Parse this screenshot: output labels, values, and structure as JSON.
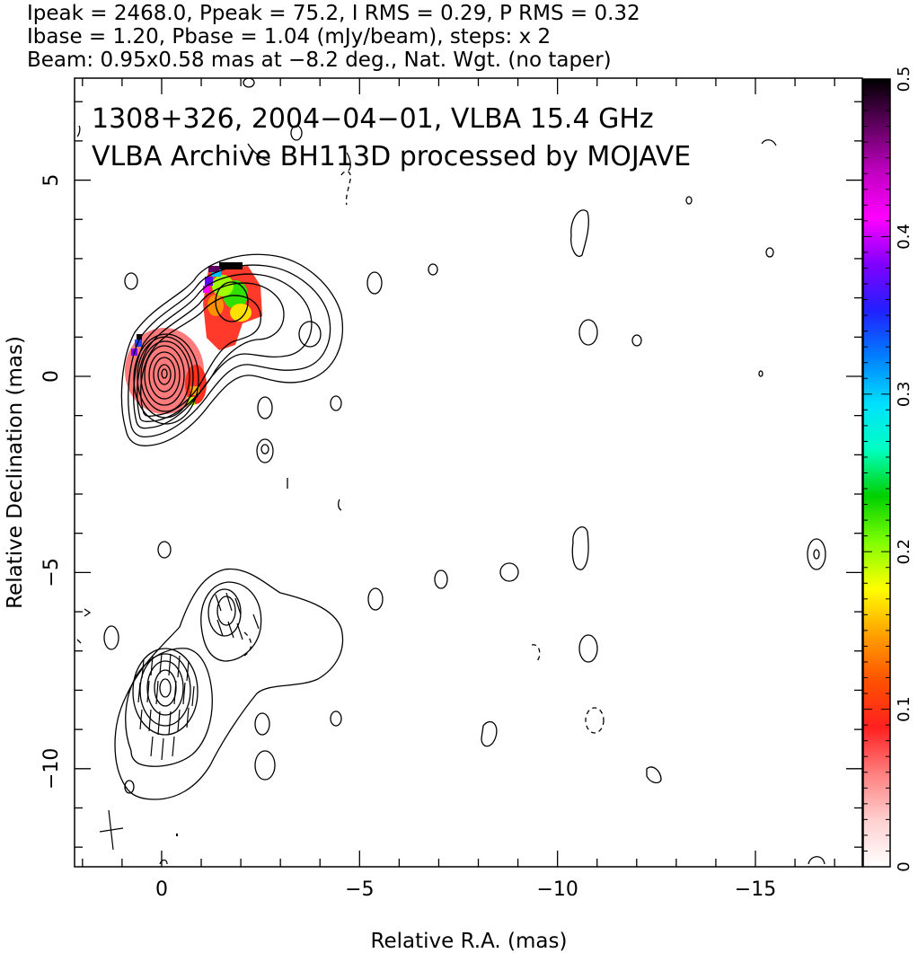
{
  "header": {
    "line1": "Ipeak = 2468.0, Ppeak = 75.2, I RMS = 0.29, P RMS = 0.32",
    "line2": "Ibase = 1.20, Pbase = 1.04 (mJy/beam), steps: x 2",
    "line3": "Beam: 0.95x0.58 mas at −8.2 deg., Nat. Wgt. (no taper)"
  },
  "chart_data": {
    "type": "heatmap",
    "title_line1": "1308+326, 2004−04−01, VLBA 15.4 GHz",
    "title_line2": "VLBA Archive BH113D processed by MOJAVE",
    "xlabel": "Relative R.A. (mas)",
    "ylabel": "Relative Declination (mas)",
    "xlim": [
      2.2,
      -17.7
    ],
    "ylim": [
      -12.5,
      7.6
    ],
    "x_ticks": [
      0,
      -5,
      -10,
      -15
    ],
    "x_tick_labels": [
      "0",
      "−5",
      "−10",
      "−15"
    ],
    "y_ticks": [
      5,
      0,
      -5,
      -10
    ],
    "y_tick_labels": [
      "5",
      "0",
      "−5",
      "−10"
    ],
    "colorbar": {
      "min": 0,
      "max": 0.5,
      "ticks": [
        0,
        0.1,
        0.2,
        0.3,
        0.4,
        0.5
      ],
      "tick_labels": [
        "0",
        "0.1",
        "0.2",
        "0.3",
        "0.4",
        "0.5"
      ],
      "colors": [
        "#ffffff",
        "#ffd0d0",
        "#ff8080",
        "#ff2020",
        "#ff5000",
        "#ffa000",
        "#ffff00",
        "#80ff00",
        "#00d000",
        "#00ffc0",
        "#00e0ff",
        "#0080ff",
        "#2020ff",
        "#8000ff",
        "#ff00ff",
        "#c000c0",
        "#600060",
        "#000000"
      ]
    },
    "beam": {
      "major_mas": 0.95,
      "minor_mas": 0.58,
      "pa_deg": -8.2
    }
  }
}
